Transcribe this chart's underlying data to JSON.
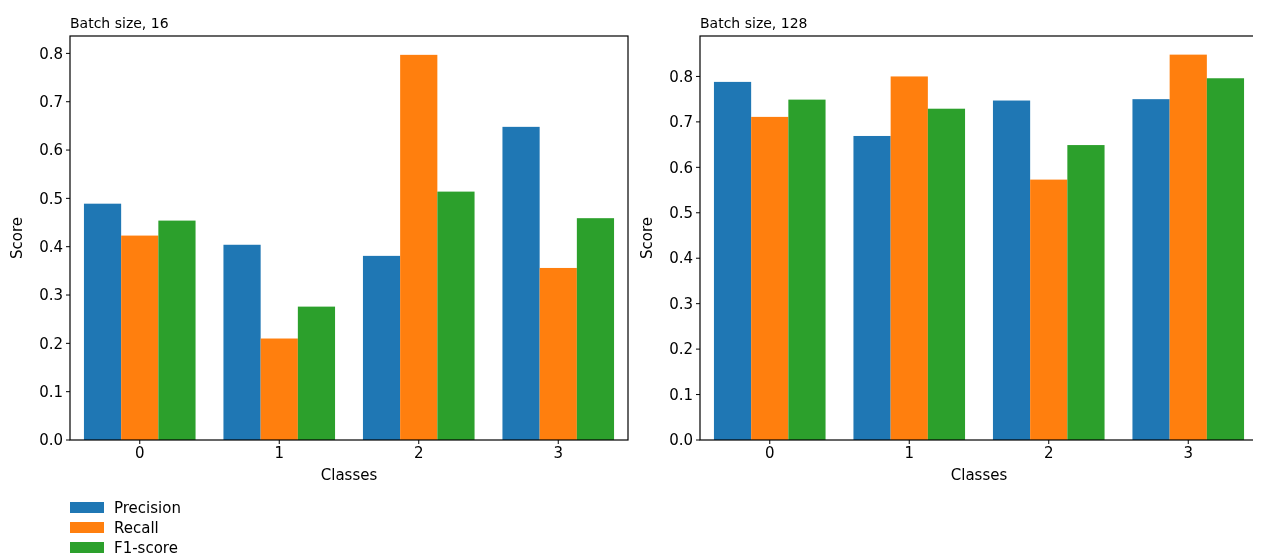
{
  "chart_data": [
    {
      "type": "bar",
      "title": "Batch size, 16",
      "xlabel": "Classes",
      "ylabel": "Score",
      "categories": [
        "0",
        "1",
        "2",
        "3"
      ],
      "series": [
        {
          "name": "Precision",
          "color": "#1f77b4",
          "values": [
            0.489,
            0.404,
            0.381,
            0.648
          ]
        },
        {
          "name": "Recall",
          "color": "#ff7f0e",
          "values": [
            0.423,
            0.21,
            0.797,
            0.356
          ]
        },
        {
          "name": "F1-score",
          "color": "#2ca02c",
          "values": [
            0.454,
            0.276,
            0.514,
            0.459
          ]
        }
      ],
      "ylim": [
        0,
        0.836
      ],
      "yticks": [
        {
          "value": 0,
          "label": "0.0"
        },
        0.1,
        0.2,
        0.3,
        0.4,
        0.5,
        0.6,
        0.7,
        0.8
      ],
      "grid": false,
      "legend": "bottom"
    },
    {
      "type": "bar",
      "title": "Batch size, 128",
      "xlabel": "Classes",
      "ylabel": "Score",
      "categories": [
        "0",
        "1",
        "2",
        "3"
      ],
      "series": [
        {
          "color": "#1f77b4",
          "values": [
            0.788,
            0.669,
            0.747,
            0.75
          ]
        },
        {
          "color": "#ff7f0e",
          "values": [
            0.711,
            0.8,
            0.573,
            0.848
          ]
        },
        {
          "color": "#2ca02c",
          "values": [
            0.749,
            0.729,
            0.649,
            0.796
          ]
        }
      ],
      "ylim": [
        0,
        0.889
      ],
      "yticks": [
        {
          "value": 0,
          "label": "0.0"
        },
        0.1,
        0.2,
        0.3,
        0.4,
        0.5,
        0.6,
        0.7,
        0.8
      ],
      "grid": false
    }
  ]
}
